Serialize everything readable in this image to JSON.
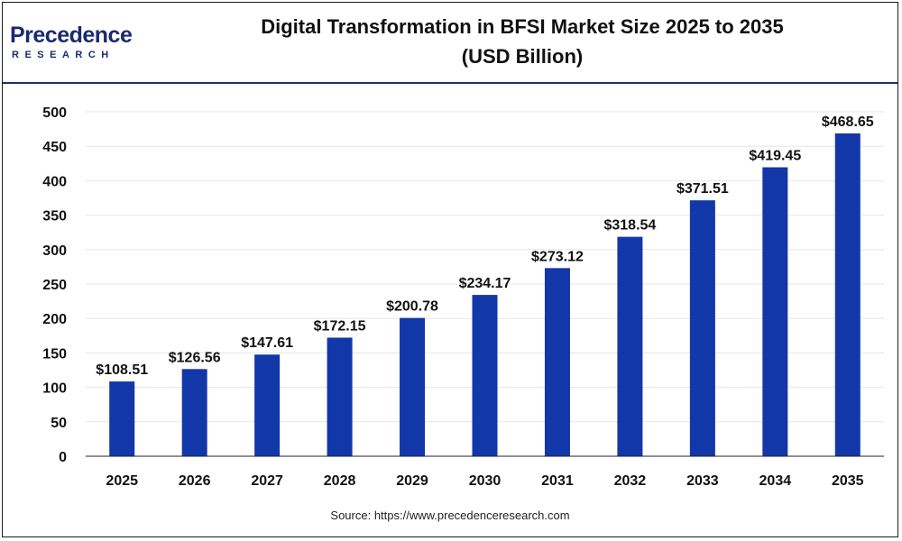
{
  "header": {
    "logo_word": "Precedence",
    "logo_sub": "RESEARCH",
    "title_line1": "Digital Transformation in BFSI Market Size 2025 to 2035",
    "title_line2": "(USD Billion)"
  },
  "footer": {
    "source": "Source: https://www.precedenceresearch.com"
  },
  "colors": {
    "bar": "#1237a8",
    "brand": "#1b2a6e"
  },
  "chart_data": {
    "type": "bar",
    "categories": [
      "2025",
      "2026",
      "2027",
      "2028",
      "2029",
      "2030",
      "2031",
      "2032",
      "2033",
      "2034",
      "2035"
    ],
    "values": [
      108.51,
      126.56,
      147.61,
      172.15,
      200.78,
      234.17,
      273.12,
      318.54,
      371.51,
      419.45,
      468.65
    ],
    "data_labels": [
      "$108.51",
      "$126.56",
      "$147.61",
      "$172.15",
      "$200.78",
      "$234.17",
      "$273.12",
      "$318.54",
      "$371.51",
      "$419.45",
      "$468.65"
    ],
    "yticks": [
      0,
      50,
      100,
      150,
      200,
      250,
      300,
      350,
      400,
      450,
      500
    ],
    "ylim": [
      0,
      500
    ],
    "grid": true
  }
}
